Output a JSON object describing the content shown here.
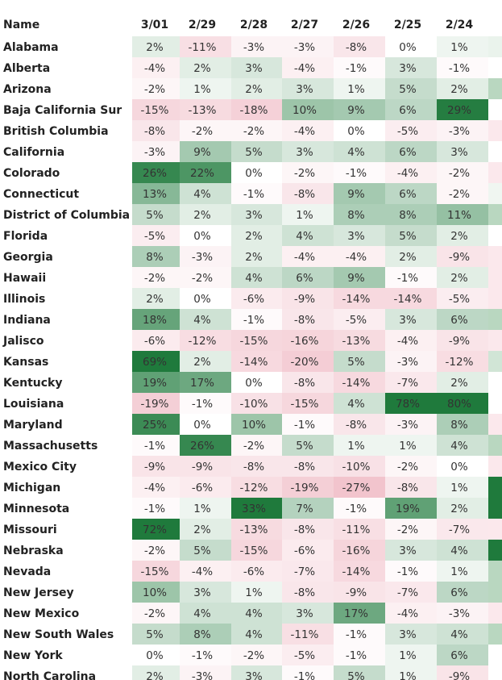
{
  "chart_data": {
    "type": "heatmap",
    "header_name": "Name",
    "columns": [
      "3/01",
      "2/29",
      "2/28",
      "2/27",
      "2/26",
      "2/25",
      "2/24"
    ],
    "rows": [
      {
        "name": "Alabama",
        "values": [
          2,
          -11,
          -3,
          -3,
          -8,
          0,
          1
        ]
      },
      {
        "name": "Alberta",
        "values": [
          -4,
          2,
          3,
          -4,
          -1,
          3,
          -1
        ]
      },
      {
        "name": "Arizona",
        "values": [
          -2,
          1,
          2,
          3,
          1,
          5,
          2
        ]
      },
      {
        "name": "Baja California Sur",
        "values": [
          -15,
          -13,
          -18,
          10,
          9,
          6,
          29
        ]
      },
      {
        "name": "British Columbia",
        "values": [
          -8,
          -2,
          -2,
          -4,
          0,
          -5,
          -3
        ]
      },
      {
        "name": "California",
        "values": [
          -3,
          9,
          5,
          3,
          4,
          6,
          3
        ]
      },
      {
        "name": "Colorado",
        "values": [
          26,
          22,
          0,
          -2,
          -1,
          -4,
          -2
        ]
      },
      {
        "name": "Connecticut",
        "values": [
          13,
          4,
          -1,
          -8,
          9,
          6,
          -2
        ]
      },
      {
        "name": "District of Columbia",
        "values": [
          5,
          2,
          3,
          1,
          8,
          8,
          11
        ]
      },
      {
        "name": "Florida",
        "values": [
          -5,
          0,
          2,
          4,
          3,
          5,
          2
        ]
      },
      {
        "name": "Georgia",
        "values": [
          8,
          -3,
          2,
          -4,
          -4,
          2,
          -9
        ]
      },
      {
        "name": "Hawaii",
        "values": [
          -2,
          -2,
          4,
          6,
          9,
          -1,
          2
        ]
      },
      {
        "name": "Illinois",
        "values": [
          2,
          0,
          -6,
          -9,
          -14,
          -14,
          -5
        ]
      },
      {
        "name": "Indiana",
        "values": [
          18,
          4,
          -1,
          -8,
          -5,
          3,
          6
        ]
      },
      {
        "name": "Jalisco",
        "values": [
          -6,
          -12,
          -15,
          -16,
          -13,
          -4,
          -9
        ]
      },
      {
        "name": "Kansas",
        "values": [
          69,
          2,
          -14,
          -20,
          5,
          -3,
          -12
        ]
      },
      {
        "name": "Kentucky",
        "values": [
          19,
          17,
          0,
          -8,
          -14,
          -7,
          2
        ]
      },
      {
        "name": "Louisiana",
        "values": [
          -19,
          -1,
          -10,
          -15,
          4,
          78,
          80
        ]
      },
      {
        "name": "Maryland",
        "values": [
          25,
          0,
          10,
          -1,
          -8,
          -3,
          8
        ]
      },
      {
        "name": "Massachusetts",
        "values": [
          -1,
          26,
          -2,
          5,
          1,
          1,
          4
        ]
      },
      {
        "name": "Mexico City",
        "values": [
          -9,
          -9,
          -8,
          -8,
          -10,
          -2,
          0
        ]
      },
      {
        "name": "Michigan",
        "values": [
          -4,
          -6,
          -12,
          -19,
          -27,
          -8,
          1
        ]
      },
      {
        "name": "Minnesota",
        "values": [
          -1,
          1,
          33,
          7,
          -1,
          19,
          2
        ]
      },
      {
        "name": "Missouri",
        "values": [
          72,
          2,
          -13,
          -8,
          -11,
          -2,
          -7
        ]
      },
      {
        "name": "Nebraska",
        "values": [
          -2,
          5,
          -15,
          -6,
          -16,
          3,
          4
        ]
      },
      {
        "name": "Nevada",
        "values": [
          -15,
          -4,
          -6,
          -7,
          -14,
          -1,
          1
        ]
      },
      {
        "name": "New Jersey",
        "values": [
          10,
          3,
          1,
          -8,
          -9,
          -7,
          6
        ]
      },
      {
        "name": "New Mexico",
        "values": [
          -2,
          4,
          4,
          3,
          17,
          -4,
          -3
        ]
      },
      {
        "name": "New South Wales",
        "values": [
          5,
          8,
          4,
          -11,
          -1,
          3,
          4
        ]
      },
      {
        "name": "New York",
        "values": [
          0,
          -1,
          -2,
          -5,
          -1,
          1,
          6
        ]
      },
      {
        "name": "North Carolina",
        "values": [
          2,
          -3,
          3,
          -1,
          5,
          1,
          -9
        ]
      }
    ],
    "value_suffix": "%",
    "partial_column_fills": [
      "#eaf3ec",
      "#ffffff",
      "#b9d7c0",
      "#ffffff",
      "#fbe8ec",
      "#ffffff",
      "#fbe8ec",
      "#f0f6f1",
      "#b9d7c0",
      "#ffffff",
      "#fbe8ec",
      "#fbe8ec",
      "#fbe8ec",
      "#b9d7c0",
      "#fbe8ec",
      "#d1e5d6",
      "#ffffff",
      "#ffffff",
      "#fbe8ec",
      "#b9d7c0",
      "#fbe8ec",
      "#1f7a3c",
      "#1f7a3c",
      "#fbe8ec",
      "#1f7a3c",
      "#b9d7c0",
      "#b9d7c0",
      "#fbe8ec",
      "#b9d7c0",
      "#ffffff",
      "#ffffff"
    ],
    "colors": {
      "positive_strong": "#1f7a3c",
      "negative_strong": "#f2c4cd",
      "neutral": "#ffffff",
      "text": "#333333",
      "header_text": "#222222"
    }
  }
}
